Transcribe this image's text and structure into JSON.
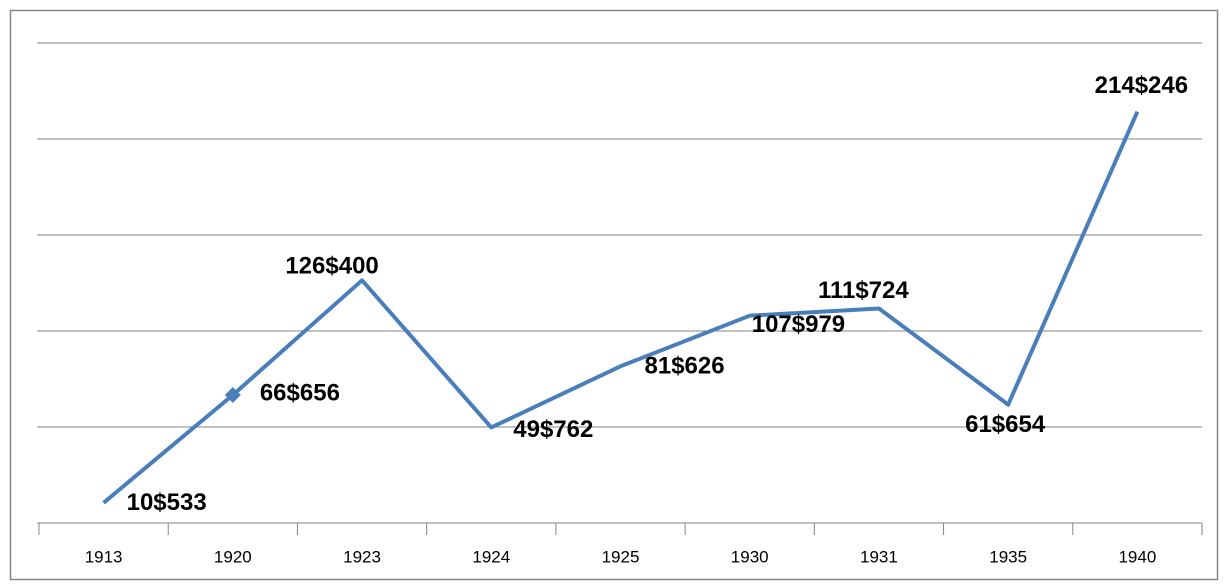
{
  "chart_data": {
    "type": "line",
    "categories": [
      "1913",
      "1920",
      "1923",
      "1924",
      "1925",
      "1930",
      "1931",
      "1935",
      "1940"
    ],
    "series": [
      {
        "color": "#4a7ebb",
        "values": [
          10533,
          66656,
          126400,
          49762,
          81626,
          107979,
          111724,
          61654,
          214246
        ],
        "value_labels": [
          "10$533",
          "66$656",
          "126$400",
          "49$762",
          "81$626",
          "107$979",
          "111$724",
          "61$654",
          "214$246"
        ]
      }
    ],
    "ylim": [
      0,
      250000
    ],
    "yticks": [
      0,
      50000,
      100000,
      150000,
      200000,
      250000
    ],
    "grid": true
  }
}
